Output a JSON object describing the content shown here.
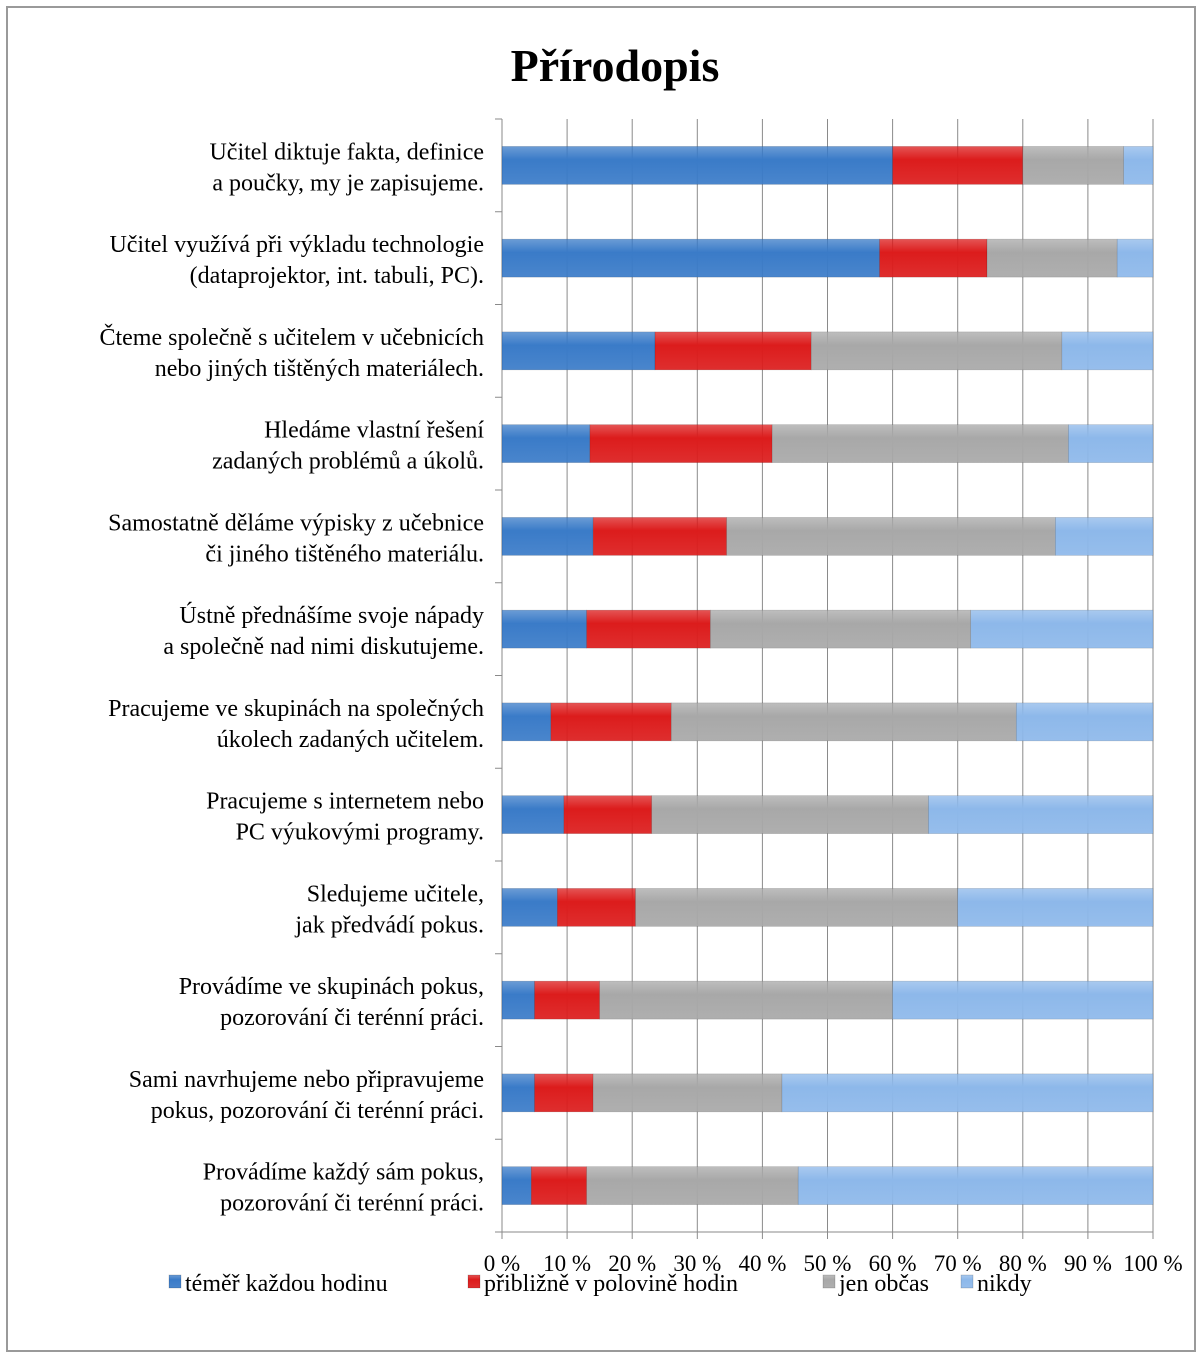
{
  "chart_data": {
    "type": "bar",
    "orientation": "horizontal",
    "stacked": "percent",
    "title": "Přírodopis",
    "xlabel": "",
    "ylabel": "",
    "xlim": [
      0,
      100
    ],
    "x_ticks": [
      "0 %",
      "10 %",
      "20 %",
      "30 %",
      "40 %",
      "50 %",
      "60 %",
      "70 %",
      "80 %",
      "90 %",
      "100 %"
    ],
    "grid": "vertical",
    "legend_position": "bottom",
    "categories": [
      [
        "Učitel diktuje fakta, definice",
        "a poučky, my je zapisujeme."
      ],
      [
        "Učitel využívá při výkladu technologie",
        "(dataprojektor, int. tabuli, PC)."
      ],
      [
        "Čteme společně s učitelem v učebnicích",
        "nebo jiných tištěných materiálech."
      ],
      [
        "Hledáme vlastní řešení",
        "zadaných problémů a úkolů."
      ],
      [
        "Samostatně děláme výpisky z učebnice",
        "či jiného tištěného materiálu."
      ],
      [
        "Ústně přednášíme svoje nápady",
        "a společně nad nimi diskutujeme."
      ],
      [
        "Pracujeme ve skupinách na společných",
        "úkolech zadaných učitelem."
      ],
      [
        "Pracujeme s internetem nebo",
        "PC výukovými programy."
      ],
      [
        "Sledujeme učitele,",
        "jak předvádí pokus."
      ],
      [
        "Provádíme ve skupinách pokus,",
        "pozorování či terénní práci."
      ],
      [
        "Sami navrhujeme nebo připravujeme",
        "pokus, pozorování či terénní práci."
      ],
      [
        "Provádíme každý sám pokus,",
        "pozorování či terénní práci."
      ]
    ],
    "series": [
      {
        "name": "téměř každou hodinu",
        "color": "#3A7BC8",
        "values": [
          60,
          58,
          23.5,
          13.5,
          14,
          13,
          7.5,
          9.5,
          8.5,
          5,
          5,
          4.5
        ]
      },
      {
        "name": "přibližně v polovině hodin",
        "color": "#DC1C1C",
        "values": [
          20,
          16.5,
          24,
          28,
          20.5,
          19,
          18.5,
          13.5,
          12,
          10,
          9,
          8.5
        ]
      },
      {
        "name": "jen občas",
        "color": "#A8A8A8",
        "values": [
          15.5,
          20,
          38.5,
          45.5,
          50.5,
          40,
          53,
          42.5,
          49.5,
          45,
          29,
          32.5
        ]
      },
      {
        "name": "nikdy",
        "color": "#8DB8EA",
        "values": [
          4.5,
          5.5,
          14,
          13,
          15,
          28,
          21,
          34.5,
          30,
          40,
          57,
          54.5
        ]
      }
    ]
  }
}
